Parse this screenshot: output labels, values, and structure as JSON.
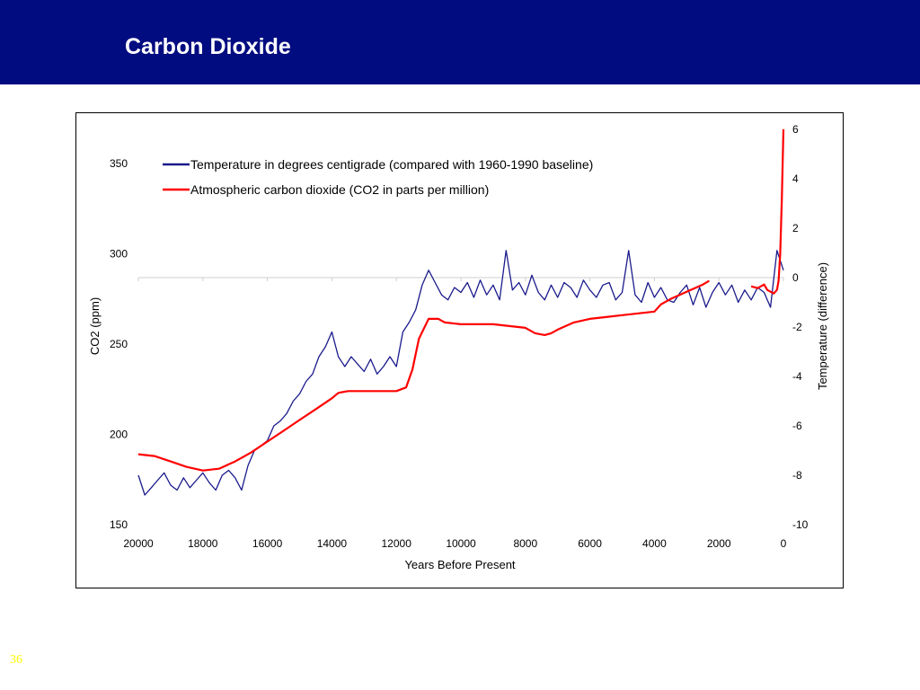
{
  "slide": {
    "title": "Carbon Dioxide",
    "number": "36"
  },
  "colors": {
    "header_bg": "#000c80",
    "header_text": "#ffffff",
    "temperature_line": "#1a1a8c",
    "co2_line": "#ff0000",
    "slide_number": "#ffff00"
  },
  "chart_data": {
    "type": "line",
    "title": "",
    "xlabel": "Years Before Present",
    "ylabel": "CO2 (ppm)",
    "y2label": "Temperature (difference)",
    "xlim": [
      20000,
      0
    ],
    "xticks": [
      "20000",
      "18000",
      "16000",
      "14000",
      "12000",
      "10000",
      "8000",
      "6000",
      "4000",
      "2000",
      "0"
    ],
    "ylim": [
      150,
      350
    ],
    "yticks": [
      "150",
      "200",
      "250",
      "300",
      "350"
    ],
    "y2lim": [
      -10,
      6
    ],
    "y2ticks": [
      "-10",
      "-8",
      "-6",
      "-4",
      "-2",
      "0",
      "2",
      "4",
      "6"
    ],
    "legend_position": "top-left",
    "grid": false,
    "zero_reference_line": true,
    "series": [
      {
        "name": "Temperature in degrees centigrade (compared with 1960-1990 baseline)",
        "axis": "right",
        "x": [
          20000,
          19800,
          19600,
          19400,
          19200,
          19000,
          18800,
          18600,
          18400,
          18200,
          18000,
          17800,
          17600,
          17400,
          17200,
          17000,
          16800,
          16600,
          16400,
          16200,
          16000,
          15800,
          15600,
          15400,
          15200,
          15000,
          14800,
          14600,
          14400,
          14200,
          14000,
          13800,
          13600,
          13400,
          13200,
          13000,
          12800,
          12600,
          12400,
          12200,
          12000,
          11800,
          11600,
          11400,
          11200,
          11000,
          10800,
          10600,
          10400,
          10200,
          10000,
          9800,
          9600,
          9400,
          9200,
          9000,
          8800,
          8600,
          8400,
          8200,
          8000,
          7800,
          7600,
          7400,
          7200,
          7000,
          6800,
          6600,
          6400,
          6200,
          6000,
          5800,
          5600,
          5400,
          5200,
          5000,
          4800,
          4600,
          4400,
          4200,
          4000,
          3800,
          3600,
          3400,
          3200,
          3000,
          2800,
          2600,
          2400,
          2200,
          2000,
          1800,
          1600,
          1400,
          1200,
          1000,
          800,
          600,
          400,
          200,
          0
        ],
        "values": [
          -8.0,
          -8.8,
          -8.5,
          -8.2,
          -7.9,
          -8.4,
          -8.6,
          -8.1,
          -8.5,
          -8.2,
          -7.9,
          -8.3,
          -8.6,
          -8.0,
          -7.8,
          -8.1,
          -8.6,
          -7.6,
          -7.0,
          -6.8,
          -6.6,
          -6.0,
          -5.8,
          -5.5,
          -5.0,
          -4.7,
          -4.2,
          -3.9,
          -3.2,
          -2.8,
          -2.2,
          -3.2,
          -3.6,
          -3.2,
          -3.5,
          -3.8,
          -3.3,
          -3.9,
          -3.6,
          -3.2,
          -3.6,
          -2.2,
          -1.8,
          -1.3,
          -0.3,
          0.3,
          -0.2,
          -0.7,
          -0.9,
          -0.4,
          -0.6,
          -0.2,
          -0.8,
          -0.1,
          -0.7,
          -0.3,
          -0.9,
          1.1,
          -0.5,
          -0.2,
          -0.7,
          0.1,
          -0.6,
          -0.9,
          -0.3,
          -0.8,
          -0.2,
          -0.4,
          -0.8,
          -0.1,
          -0.5,
          -0.8,
          -0.3,
          -0.2,
          -0.9,
          -0.6,
          1.1,
          -0.7,
          -1.0,
          -0.2,
          -0.8,
          -0.4,
          -0.9,
          -1.0,
          -0.6,
          -0.3,
          -1.1,
          -0.4,
          -1.2,
          -0.6,
          -0.2,
          -0.7,
          -0.3,
          -1.0,
          -0.5,
          -0.9,
          -0.4,
          -0.6,
          -1.2,
          1.1,
          0.3
        ]
      },
      {
        "name": "Atmospheric carbon dioxide (CO2 in parts per million)",
        "axis": "left",
        "x": [
          20000,
          19500,
          19000,
          18500,
          18000,
          17500,
          17000,
          16500,
          16000,
          15500,
          15000,
          14500,
          14000,
          13800,
          13500,
          13000,
          12500,
          12000,
          11700,
          11500,
          11300,
          11000,
          10700,
          10500,
          10000,
          9500,
          9000,
          8500,
          8000,
          7700,
          7400,
          7200,
          7000,
          6500,
          6000,
          5500,
          5000,
          4500,
          4000,
          3800,
          3500,
          3000,
          2500,
          2300
        ],
        "values": [
          189,
          188,
          185,
          182,
          180,
          181,
          185,
          190,
          196,
          202,
          208,
          214,
          220,
          223,
          224,
          224,
          224,
          224,
          226,
          236,
          253,
          264,
          264,
          262,
          261,
          261,
          261,
          260,
          259,
          256,
          255,
          256,
          258,
          262,
          264,
          265,
          266,
          267,
          268,
          272,
          275,
          279,
          283,
          285
        ]
      },
      {
        "name": "",
        "axis": "left",
        "x": [
          1000,
          800,
          600,
          500,
          400,
          300,
          200,
          150,
          100,
          50,
          0
        ],
        "values": [
          282,
          281,
          283,
          280,
          279,
          278,
          280,
          285,
          300,
          330,
          369
        ]
      }
    ]
  }
}
